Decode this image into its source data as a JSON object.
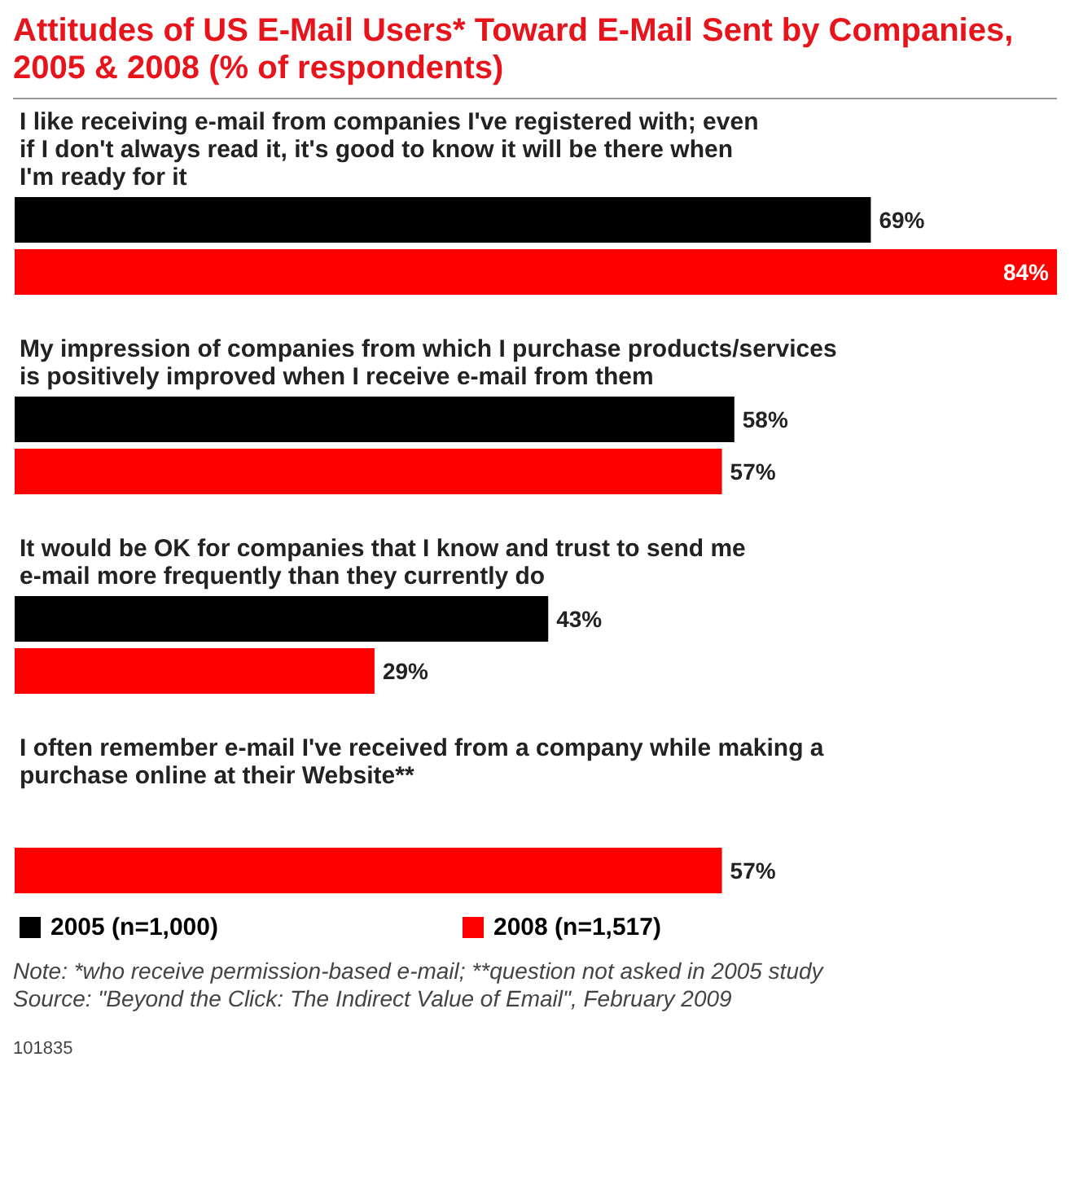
{
  "chart_data": {
    "type": "bar",
    "orientation": "horizontal",
    "title": "Attitudes of US E-Mail Users* Toward E-Mail Sent by Companies, 2005 & 2008 (% of respondents)",
    "categories": [
      "I like receiving e-mail from companies I've registered with; even if I don't always read it, it's good to know it will be there when I'm ready for it",
      "My impression of companies from which I purchase products/services is positively improved when I receive e-mail from them",
      "It would be OK for companies that I know and trust to send me e-mail more frequently than they currently do",
      "I often remember e-mail I've received from a company while making a purchase online at their Website**"
    ],
    "series": [
      {
        "name": "2005 (n=1,000)",
        "color": "#000000",
        "values": [
          69,
          58,
          43,
          null
        ],
        "value_labels": [
          "69%",
          "58%",
          "43%",
          null
        ]
      },
      {
        "name": "2008 (n=1,517)",
        "color": "#ff0000",
        "values": [
          84,
          57,
          29,
          57
        ],
        "value_labels": [
          "84%",
          "57%",
          "29%",
          "57%"
        ]
      }
    ],
    "legend": "bottom left",
    "annotations": [
      "Note: *who receive permission-based e-mail; **question not asked in 2005 study",
      "Source: \"Beyond the Click: The Indirect Value of Email\", February 2009",
      "101835"
    ]
  }
}
